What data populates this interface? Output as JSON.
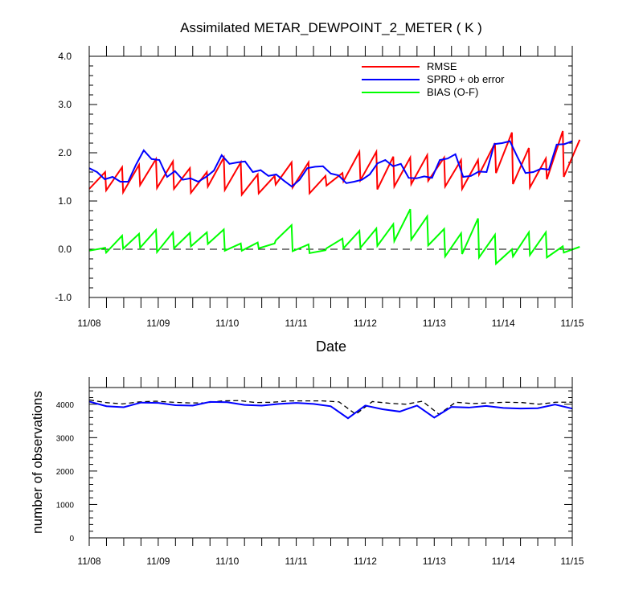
{
  "chart_data": [
    {
      "type": "line",
      "title": "Assimilated METAR_DEWPOINT_2_METER ( K )",
      "xlabel": "Date",
      "ylabel": "",
      "ylim": [
        -1.0,
        4.0
      ],
      "yticks": [
        "-1.0",
        "0.0",
        "1.0",
        "2.0",
        "3.0",
        "4.0"
      ],
      "x_start": "11/08",
      "x_end": "11/15",
      "xticks": [
        "11/08",
        "11/09",
        "11/10",
        "11/11",
        "11/12",
        "11/13",
        "11/14",
        "11/15"
      ],
      "legend_position": "top-right",
      "zero_line": "dashed",
      "series": [
        {
          "name": "RMSE",
          "color": "#ff0000",
          "sawtooth": true,
          "prior": [
            1.25,
            1.22,
            1.18,
            1.33,
            1.27,
            1.25,
            1.17,
            1.3,
            1.23,
            1.13,
            1.16,
            1.34,
            1.28,
            1.16,
            1.32,
            1.41,
            1.43,
            1.24,
            1.3,
            1.35,
            1.42,
            1.3,
            1.25,
            1.55,
            1.58,
            1.35,
            1.28,
            1.45,
            1.5
          ],
          "posterior": [
            1.6,
            1.7,
            1.75,
            1.87,
            1.82,
            1.68,
            1.6,
            1.9,
            1.8,
            1.55,
            1.52,
            1.8,
            1.8,
            1.52,
            1.58,
            2.02,
            2.02,
            1.92,
            1.9,
            1.95,
            1.9,
            1.85,
            1.85,
            2.2,
            2.42,
            2.1,
            1.88,
            2.45,
            2.27
          ]
        },
        {
          "name": "SPRD + ob error",
          "color": "#0000ff",
          "sawtooth": false,
          "values": [
            1.68,
            1.6,
            1.45,
            1.5,
            1.4,
            1.4,
            1.75,
            2.05,
            1.87,
            1.85,
            1.5,
            1.62,
            1.44,
            1.47,
            1.4,
            1.5,
            1.63,
            1.95,
            1.77,
            1.8,
            1.82,
            1.6,
            1.64,
            1.52,
            1.55,
            1.42,
            1.3,
            1.44,
            1.68,
            1.71,
            1.72,
            1.57,
            1.53,
            1.37,
            1.4,
            1.44,
            1.55,
            1.78,
            1.85,
            1.72,
            1.77,
            1.48,
            1.47,
            1.51,
            1.48,
            1.85,
            1.88,
            1.97,
            1.5,
            1.52,
            1.61,
            1.6,
            2.18,
            2.2,
            2.24,
            1.9,
            1.58,
            1.6,
            1.67,
            1.65,
            2.17,
            2.18,
            2.24
          ]
        },
        {
          "name": "BIAS (O-F)",
          "color": "#00ff00",
          "sawtooth": true,
          "prior": [
            -0.03,
            -0.07,
            0.01,
            0.03,
            -0.06,
            0.02,
            0.06,
            0.11,
            -0.03,
            -0.03,
            0.02,
            0.18,
            -0.04,
            -0.08,
            0.02,
            0.02,
            0.03,
            0.07,
            0.17,
            0.2,
            0.08,
            -0.15,
            -0.1,
            -0.17,
            -0.3,
            -0.15,
            -0.12,
            -0.17,
            -0.07
          ],
          "posterior": [
            0.03,
            0.28,
            0.32,
            0.4,
            0.35,
            0.34,
            0.35,
            0.41,
            0.12,
            0.14,
            0.12,
            0.5,
            0.1,
            -0.02,
            0.22,
            0.38,
            0.43,
            0.52,
            0.83,
            0.68,
            0.42,
            0.33,
            0.64,
            0.3,
            0.0,
            0.35,
            0.35,
            0.06,
            0.05
          ]
        }
      ]
    },
    {
      "type": "line",
      "title": "",
      "xlabel": "",
      "ylabel": "number of observations",
      "ylim": [
        0,
        4500
      ],
      "yticks": [
        "0",
        "1000",
        "2000",
        "3000",
        "4000"
      ],
      "xticks": [
        "11/08",
        "11/09",
        "11/10",
        "11/11",
        "11/12",
        "11/13",
        "11/14",
        "11/15"
      ],
      "series": [
        {
          "style": "dashed",
          "color": "#000000",
          "values": [
            4130,
            4050,
            4010,
            4070,
            4090,
            4060,
            4040,
            4040,
            4100,
            4110,
            4050,
            4060,
            4100,
            4100,
            4100,
            4070,
            3700,
            4080,
            4030,
            4000,
            4090,
            3700,
            4060,
            4020,
            4040,
            4060,
            4050,
            4000,
            4060,
            4060
          ]
        },
        {
          "style": "solid",
          "color": "#0000ff",
          "values": [
            4080,
            3940,
            3910,
            4050,
            4040,
            3970,
            3960,
            4070,
            4060,
            3980,
            3960,
            4010,
            4040,
            4010,
            3940,
            3580,
            3960,
            3850,
            3780,
            3960,
            3600,
            3920,
            3900,
            3950,
            3890,
            3870,
            3880,
            3990,
            3870
          ]
        }
      ]
    }
  ]
}
